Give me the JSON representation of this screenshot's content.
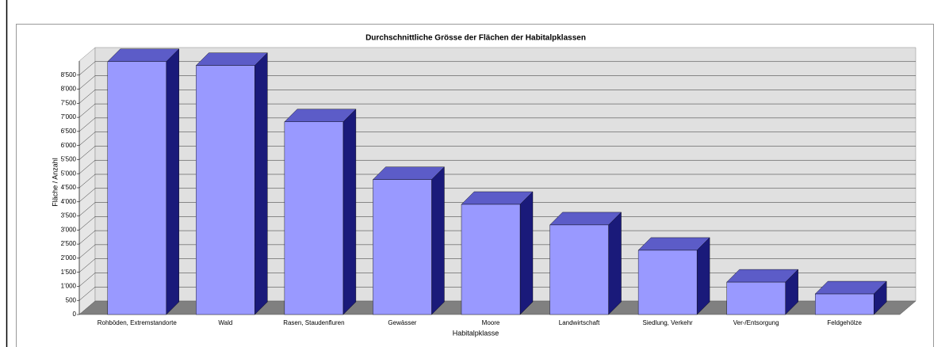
{
  "chart_data": {
    "type": "bar3d",
    "title": "Durchschnittliche Grösse der Flächen der Habitalpklassen",
    "x_label": "Habitalpklasse",
    "y_label": "Fläche / Anzahl",
    "categories": [
      "Rohböden, Extremstandorte",
      "Wald",
      "Rasen, Staudenfluren",
      "Gewässer",
      "Moore",
      "Landwirtschaft",
      "Siedlung, Verkehr",
      "Ver-/Entsorgung",
      "Feldgehölze"
    ],
    "values": [
      8980,
      8840,
      6840,
      4790,
      3910,
      3180,
      2280,
      1150,
      730
    ],
    "color": "#9999ff",
    "ylim": [
      0,
      9000
    ],
    "yticks": [
      0,
      500,
      {
        "value": 1000,
        "label": "1'000"
      },
      {
        "value": 1500,
        "label": "1'500"
      },
      {
        "value": 2000,
        "label": "2'000"
      },
      {
        "value": 2500,
        "label": "2'500"
      },
      {
        "value": 3000,
        "label": "3'000"
      },
      {
        "value": 3500,
        "label": "3'500"
      },
      {
        "value": 4000,
        "label": "4'000"
      },
      {
        "value": 4500,
        "label": "4'500"
      },
      {
        "value": 5000,
        "label": "5'000"
      },
      {
        "value": 5500,
        "label": "5'500"
      },
      {
        "value": 6000,
        "label": "6'000"
      },
      {
        "value": 6500,
        "label": "6'500"
      },
      {
        "value": 7000,
        "label": "7'000"
      },
      {
        "value": 7500,
        "label": "7'500"
      },
      {
        "value": 8000,
        "label": "8'000"
      },
      {
        "value": 8500,
        "label": "8'500"
      }
    ],
    "grid": true
  }
}
